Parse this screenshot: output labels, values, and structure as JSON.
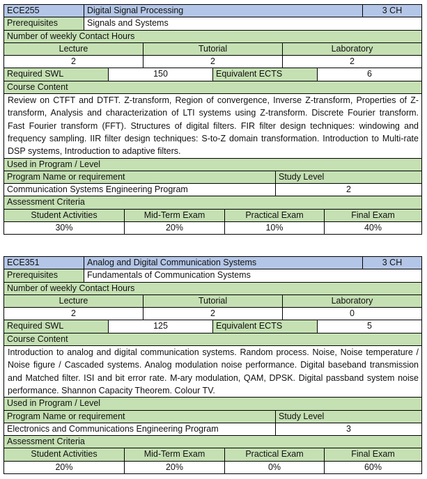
{
  "labels": {
    "prerequisites": "Prerequisites",
    "contact_hours": "Number of weekly Contact Hours",
    "lecture": "Lecture",
    "tutorial": "Tutorial",
    "laboratory": "Laboratory",
    "required_swl": "Required SWL",
    "equivalent_ects": "Equivalent ECTS",
    "course_content": "Course Content",
    "used_in": "Used in Program / Level",
    "program_name": "Program Name or requirement",
    "study_level": "Study Level",
    "assessment": "Assessment Criteria",
    "student_activities": "Student Activities",
    "midterm": "Mid-Term Exam",
    "practical": "Practical Exam",
    "final": "Final Exam"
  },
  "colors": {
    "header": "#b4c6e7",
    "label": "#c5e0b3"
  },
  "courses": [
    {
      "code": "ECE255",
      "title": "Digital Signal Processing",
      "credits": "3 CH",
      "prerequisites": "Signals and Systems",
      "lecture": "2",
      "tutorial": "2",
      "laboratory": "2",
      "swl": "150",
      "ects": "6",
      "content": "Review on CTFT and DTFT. Z-transform, Region of convergence, Inverse Z-transform, Properties of Z-transform, Analysis and characterization of LTI systems using Z-transform. Discrete Fourier transform. Fast Fourier transform (FFT). Structures of digital filters. FIR filter design techniques: windowing and frequency sampling. IIR filter design techniques: S-to-Z domain transformation. Introduction to Multi-rate DSP systems, Introduction to adaptive filters.",
      "program": "Communication Systems Engineering Program",
      "level": "2",
      "student_activities": "30%",
      "midterm": "20%",
      "practical": "10%",
      "final": "40%"
    },
    {
      "code": "ECE351",
      "title": "Analog and Digital Communication Systems",
      "credits": "3 CH",
      "prerequisites": "Fundamentals of Communication Systems",
      "lecture": "2",
      "tutorial": "2",
      "laboratory": "0",
      "swl": "125",
      "ects": "5",
      "content": "Introduction to analog and digital communication systems. Random process. Noise, Noise temperature / Noise figure / Cascaded systems. Analog modulation noise performance. Digital baseband transmission and Matched filter. ISI and bit error rate.  M-ary modulation, QAM, DPSK. Digital passband system noise performance. Shannon Capacity Theorem. Colour TV.",
      "program": "Electronics and Communications Engineering Program",
      "level": "3",
      "student_activities": "20%",
      "midterm": "20%",
      "practical": "0%",
      "final": "60%"
    }
  ]
}
